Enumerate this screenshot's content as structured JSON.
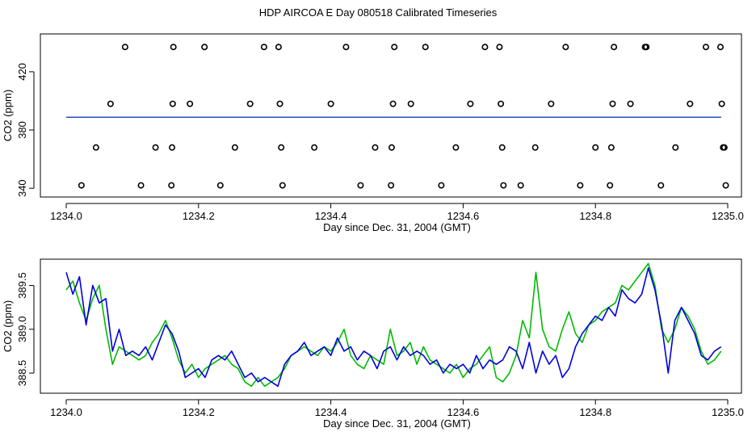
{
  "title": "HDP AIRCOA E  Day 080518  Calibrated Timeseries",
  "colors": {
    "green": "#00bb00",
    "blue": "#0000dd",
    "axis": "#000000"
  },
  "chart_data": [
    {
      "type": "scatter",
      "xlabel": "Day since Dec. 31, 2004 (GMT)",
      "ylabel": "CO2 (ppm)",
      "xlim": [
        1234.0,
        1235.0
      ],
      "ylim": [
        334,
        446
      ],
      "xticks": [
        1234.0,
        1234.2,
        1234.4,
        1234.6,
        1234.8,
        1235.0
      ],
      "xtick_labels": [
        "1234.0",
        "1234.2",
        "1234.4",
        "1234.6",
        "1234.8",
        "1235.0"
      ],
      "yticks": [
        340,
        380,
        420
      ],
      "ytick_labels": [
        "340",
        "380",
        "420"
      ],
      "grid": false,
      "points": [
        {
          "x": 1234.023,
          "y": 342
        },
        {
          "x": 1234.045,
          "y": 368
        },
        {
          "x": 1234.067,
          "y": 398
        },
        {
          "x": 1234.089,
          "y": 437
        },
        {
          "x": 1234.113,
          "y": 342
        },
        {
          "x": 1234.135,
          "y": 368
        },
        {
          "x": 1234.159,
          "y": 342
        },
        {
          "x": 1234.16,
          "y": 368
        },
        {
          "x": 1234.161,
          "y": 398
        },
        {
          "x": 1234.162,
          "y": 437
        },
        {
          "x": 1234.187,
          "y": 398
        },
        {
          "x": 1234.209,
          "y": 437
        },
        {
          "x": 1234.233,
          "y": 342
        },
        {
          "x": 1234.255,
          "y": 368
        },
        {
          "x": 1234.278,
          "y": 398
        },
        {
          "x": 1234.299,
          "y": 437
        },
        {
          "x": 1234.321,
          "y": 437
        },
        {
          "x": 1234.323,
          "y": 398
        },
        {
          "x": 1234.325,
          "y": 368
        },
        {
          "x": 1234.327,
          "y": 342
        },
        {
          "x": 1234.375,
          "y": 368
        },
        {
          "x": 1234.4,
          "y": 398
        },
        {
          "x": 1234.423,
          "y": 437
        },
        {
          "x": 1234.445,
          "y": 342
        },
        {
          "x": 1234.467,
          "y": 368
        },
        {
          "x": 1234.491,
          "y": 342
        },
        {
          "x": 1234.492,
          "y": 368
        },
        {
          "x": 1234.494,
          "y": 398
        },
        {
          "x": 1234.496,
          "y": 437
        },
        {
          "x": 1234.521,
          "y": 398
        },
        {
          "x": 1234.543,
          "y": 437
        },
        {
          "x": 1234.567,
          "y": 342
        },
        {
          "x": 1234.589,
          "y": 368
        },
        {
          "x": 1234.611,
          "y": 398
        },
        {
          "x": 1234.633,
          "y": 437
        },
        {
          "x": 1234.655,
          "y": 437
        },
        {
          "x": 1234.657,
          "y": 398
        },
        {
          "x": 1234.659,
          "y": 368
        },
        {
          "x": 1234.661,
          "y": 342
        },
        {
          "x": 1234.687,
          "y": 342
        },
        {
          "x": 1234.709,
          "y": 368
        },
        {
          "x": 1234.733,
          "y": 398
        },
        {
          "x": 1234.755,
          "y": 437
        },
        {
          "x": 1234.777,
          "y": 342
        },
        {
          "x": 1234.8,
          "y": 368
        },
        {
          "x": 1234.822,
          "y": 342
        },
        {
          "x": 1234.824,
          "y": 368
        },
        {
          "x": 1234.826,
          "y": 398
        },
        {
          "x": 1234.828,
          "y": 437
        },
        {
          "x": 1234.853,
          "y": 398
        },
        {
          "x": 1234.875,
          "y": 437
        },
        {
          "x": 1234.877,
          "y": 437
        },
        {
          "x": 1234.899,
          "y": 342
        },
        {
          "x": 1234.921,
          "y": 368
        },
        {
          "x": 1234.943,
          "y": 398
        },
        {
          "x": 1234.967,
          "y": 437
        },
        {
          "x": 1234.989,
          "y": 437
        },
        {
          "x": 1234.991,
          "y": 398
        },
        {
          "x": 1234.993,
          "y": 368
        },
        {
          "x": 1234.995,
          "y": 368
        },
        {
          "x": 1234.997,
          "y": 342
        }
      ],
      "series": [
        {
          "color": "#00bb00",
          "x": [
            1234.0,
            1234.99
          ],
          "y": [
            388.9,
            388.9
          ]
        },
        {
          "color": "#0000dd",
          "x": [
            1234.0,
            1234.99
          ],
          "y": [
            388.8,
            388.8
          ]
        }
      ]
    },
    {
      "type": "line",
      "xlabel": "Day since Dec. 31, 2004 (GMT)",
      "ylabel": "CO2 (ppm)",
      "xlim": [
        1234.0,
        1235.0
      ],
      "ylim": [
        388.27,
        389.8
      ],
      "xticks": [
        1234.0,
        1234.2,
        1234.4,
        1234.6,
        1234.8,
        1235.0
      ],
      "xtick_labels": [
        "1234.0",
        "1234.2",
        "1234.4",
        "1234.6",
        "1234.8",
        "1235.0"
      ],
      "yticks": [
        388.5,
        389.0,
        389.5
      ],
      "ytick_labels": [
        "388.5",
        "389.0",
        "389.5"
      ],
      "grid": false,
      "series": [
        {
          "color": "#00bb00",
          "x": [
            1234.0,
            1234.01,
            1234.02,
            1234.03,
            1234.04,
            1234.05,
            1234.06,
            1234.07,
            1234.08,
            1234.09,
            1234.1,
            1234.11,
            1234.12,
            1234.13,
            1234.14,
            1234.15,
            1234.16,
            1234.17,
            1234.18,
            1234.19,
            1234.2,
            1234.21,
            1234.22,
            1234.23,
            1234.24,
            1234.25,
            1234.26,
            1234.27,
            1234.28,
            1234.29,
            1234.3,
            1234.31,
            1234.32,
            1234.33,
            1234.34,
            1234.35,
            1234.36,
            1234.37,
            1234.38,
            1234.39,
            1234.4,
            1234.41,
            1234.42,
            1234.43,
            1234.44,
            1234.45,
            1234.46,
            1234.47,
            1234.48,
            1234.49,
            1234.5,
            1234.51,
            1234.52,
            1234.53,
            1234.54,
            1234.55,
            1234.56,
            1234.57,
            1234.58,
            1234.59,
            1234.6,
            1234.61,
            1234.62,
            1234.63,
            1234.64,
            1234.65,
            1234.66,
            1234.67,
            1234.68,
            1234.69,
            1234.7,
            1234.71,
            1234.72,
            1234.73,
            1234.74,
            1234.75,
            1234.76,
            1234.77,
            1234.78,
            1234.79,
            1234.8,
            1234.81,
            1234.82,
            1234.83,
            1234.84,
            1234.85,
            1234.86,
            1234.87,
            1234.88,
            1234.89,
            1234.9,
            1234.91,
            1234.92,
            1234.93,
            1234.94,
            1234.95,
            1234.96,
            1234.97,
            1234.98,
            1234.99
          ],
          "y": [
            389.45,
            389.55,
            389.3,
            389.1,
            389.35,
            389.5,
            389.0,
            388.6,
            388.8,
            388.75,
            388.7,
            388.65,
            388.7,
            388.85,
            388.95,
            389.1,
            388.9,
            388.65,
            388.5,
            388.6,
            388.45,
            388.55,
            388.6,
            388.65,
            388.7,
            388.6,
            388.55,
            388.4,
            388.35,
            388.45,
            388.35,
            388.4,
            388.45,
            388.55,
            388.7,
            388.75,
            388.8,
            388.75,
            388.7,
            388.8,
            388.75,
            388.85,
            389.0,
            388.7,
            388.6,
            388.55,
            388.7,
            388.65,
            388.6,
            389.0,
            388.7,
            388.75,
            388.85,
            388.6,
            388.8,
            388.65,
            388.6,
            388.55,
            388.5,
            388.6,
            388.45,
            388.55,
            388.6,
            388.7,
            388.8,
            388.45,
            388.4,
            388.5,
            388.7,
            389.1,
            388.9,
            389.65,
            389.0,
            388.8,
            388.75,
            389.0,
            389.2,
            388.95,
            388.85,
            389.05,
            389.1,
            389.2,
            389.25,
            389.3,
            389.5,
            389.45,
            389.55,
            389.65,
            389.75,
            389.5,
            389.0,
            388.85,
            389.0,
            389.25,
            389.15,
            389.0,
            388.75,
            388.6,
            388.65,
            388.75
          ]
        },
        {
          "color": "#0000dd",
          "x": [
            1234.0,
            1234.01,
            1234.02,
            1234.03,
            1234.04,
            1234.05,
            1234.06,
            1234.07,
            1234.08,
            1234.09,
            1234.1,
            1234.11,
            1234.12,
            1234.13,
            1234.14,
            1234.15,
            1234.16,
            1234.17,
            1234.18,
            1234.19,
            1234.2,
            1234.21,
            1234.22,
            1234.23,
            1234.24,
            1234.25,
            1234.26,
            1234.27,
            1234.28,
            1234.29,
            1234.3,
            1234.31,
            1234.32,
            1234.33,
            1234.34,
            1234.35,
            1234.36,
            1234.37,
            1234.38,
            1234.39,
            1234.4,
            1234.41,
            1234.42,
            1234.43,
            1234.44,
            1234.45,
            1234.46,
            1234.47,
            1234.48,
            1234.49,
            1234.5,
            1234.51,
            1234.52,
            1234.53,
            1234.54,
            1234.55,
            1234.56,
            1234.57,
            1234.58,
            1234.59,
            1234.6,
            1234.61,
            1234.62,
            1234.63,
            1234.64,
            1234.65,
            1234.66,
            1234.67,
            1234.68,
            1234.69,
            1234.7,
            1234.71,
            1234.72,
            1234.73,
            1234.74,
            1234.75,
            1234.76,
            1234.77,
            1234.78,
            1234.79,
            1234.8,
            1234.81,
            1234.82,
            1234.83,
            1234.84,
            1234.85,
            1234.86,
            1234.87,
            1234.88,
            1234.89,
            1234.9,
            1234.91,
            1234.92,
            1234.93,
            1234.94,
            1234.95,
            1234.96,
            1234.97,
            1234.98,
            1234.99
          ],
          "y": [
            389.65,
            389.4,
            389.6,
            389.05,
            389.5,
            389.3,
            389.35,
            388.75,
            389.0,
            388.7,
            388.75,
            388.7,
            388.8,
            388.65,
            388.85,
            389.05,
            388.95,
            388.75,
            388.45,
            388.5,
            388.55,
            388.45,
            388.65,
            388.7,
            388.65,
            388.75,
            388.6,
            388.45,
            388.5,
            388.4,
            388.45,
            388.4,
            388.35,
            388.6,
            388.7,
            388.75,
            388.85,
            388.7,
            388.75,
            388.8,
            388.7,
            388.9,
            388.75,
            388.8,
            388.65,
            388.75,
            388.7,
            388.55,
            388.75,
            388.8,
            388.65,
            388.8,
            388.7,
            388.75,
            388.7,
            388.6,
            388.65,
            388.5,
            388.6,
            388.55,
            388.6,
            388.5,
            388.7,
            388.55,
            388.65,
            388.6,
            388.65,
            388.8,
            388.75,
            388.55,
            388.85,
            388.5,
            388.75,
            388.6,
            388.7,
            388.45,
            388.55,
            388.8,
            388.95,
            389.05,
            389.15,
            389.1,
            389.25,
            389.15,
            389.45,
            389.35,
            389.3,
            389.4,
            389.7,
            389.45,
            389.05,
            388.5,
            389.1,
            389.25,
            389.1,
            388.95,
            388.7,
            388.65,
            388.75,
            388.8
          ]
        }
      ]
    }
  ]
}
